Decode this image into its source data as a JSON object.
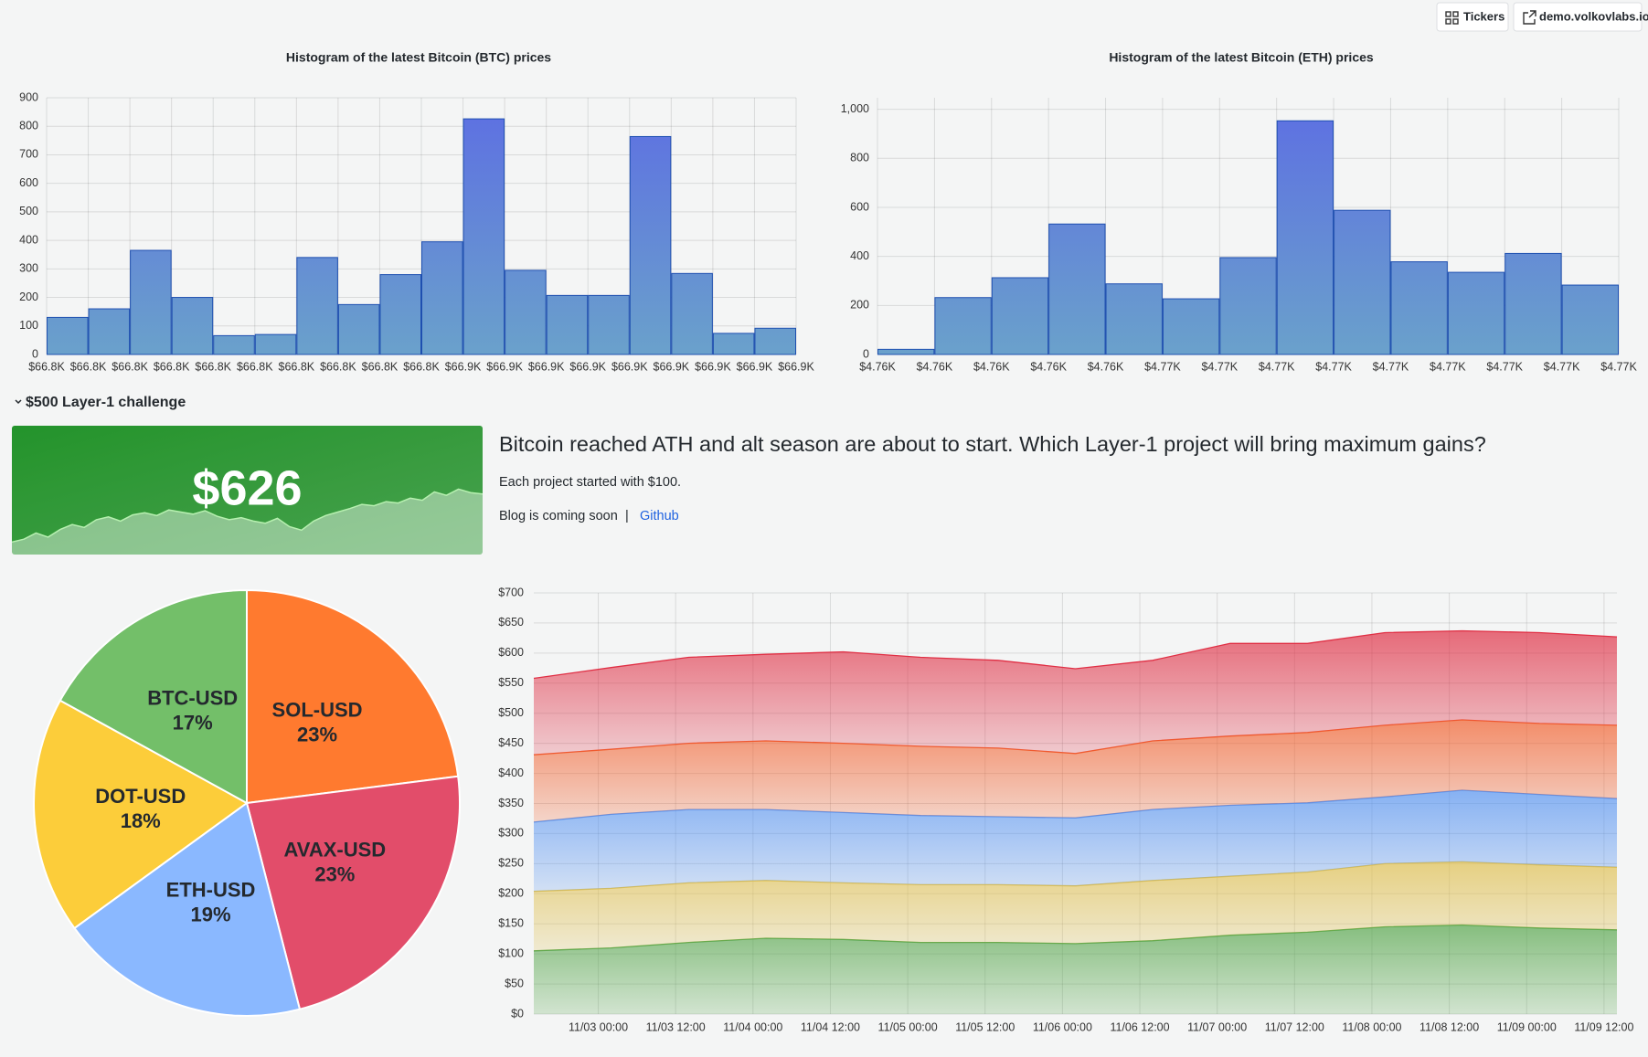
{
  "header": {
    "buttons": [
      "Tickers",
      "demo.volkovlabs.io"
    ]
  },
  "row_title": "$500 Layer-1 challenge",
  "text_panel": {
    "heading": "Bitcoin reached ATH and alt season are about to start. Which Layer-1 project will bring maximum gains?",
    "paragraph": "Each project started with $100.",
    "footer": [
      "Blog is coming soon",
      "|",
      "Github"
    ]
  },
  "chart_data": [
    {
      "type": "histogram",
      "title": "Histogram of the latest Bitcoin (BTC) prices",
      "bins": [
        66772,
        66780,
        66788,
        66796,
        66804,
        66812,
        66820,
        66828,
        66836,
        66844,
        66852,
        66860,
        66868,
        66876,
        66884,
        66892,
        66900,
        66908,
        66916
      ],
      "counts": [
        130,
        160,
        365,
        200,
        66,
        70,
        340,
        175,
        280,
        395,
        826,
        295,
        207,
        207,
        764,
        284,
        74,
        92
      ],
      "xlim": [
        66772,
        66916
      ],
      "xticks": [
        {
          "value": 66772,
          "label": "$66.8K"
        },
        {
          "value": 66780,
          "label": "$66.8K"
        },
        {
          "value": 66788,
          "label": "$66.8K"
        },
        {
          "value": 66796,
          "label": "$66.8K"
        },
        {
          "value": 66804,
          "label": "$66.8K"
        },
        {
          "value": 66812,
          "label": "$66.8K"
        },
        {
          "value": 66820,
          "label": "$66.8K"
        },
        {
          "value": 66828,
          "label": "$66.8K"
        },
        {
          "value": 66836,
          "label": "$66.8K"
        },
        {
          "value": 66844,
          "label": "$66.8K"
        },
        {
          "value": 66852,
          "label": "$66.9K"
        },
        {
          "value": 66860,
          "label": "$66.9K"
        },
        {
          "value": 66868,
          "label": "$66.9K"
        },
        {
          "value": 66876,
          "label": "$66.9K"
        },
        {
          "value": 66884,
          "label": "$66.9K"
        },
        {
          "value": 66892,
          "label": "$66.9K"
        },
        {
          "value": 66900,
          "label": "$66.9K"
        },
        {
          "value": 66908,
          "label": "$66.9K"
        },
        {
          "value": 66916,
          "label": "$66.9K"
        }
      ],
      "ylim": [
        0,
        900
      ],
      "yticks": [
        0,
        100,
        200,
        300,
        400,
        500,
        600,
        700,
        800,
        900
      ],
      "grid": true,
      "gradient": [
        "#5d6ee3",
        "#6aa1cb"
      ],
      "line_color": "#1e4fb0"
    },
    {
      "type": "histogram",
      "title": "Histogram of the latest Bitcoin (ETH) prices",
      "bins": [
        4759.2,
        4760.4,
        4761.6,
        4762.8,
        4764.0,
        4765.2,
        4766.4,
        4767.6,
        4768.8,
        4770.0,
        4771.2,
        4772.4,
        4773.6,
        4774.8
      ],
      "counts": [
        21,
        232,
        313,
        532,
        288,
        227,
        395,
        953,
        588,
        378,
        335,
        412,
        283
      ],
      "xlim": [
        4759.2,
        4774.8
      ],
      "xticks": [
        {
          "value": 4759.2,
          "label": "$4.76K"
        },
        {
          "value": 4760.4,
          "label": "$4.76K"
        },
        {
          "value": 4761.6,
          "label": "$4.76K"
        },
        {
          "value": 4762.8,
          "label": "$4.76K"
        },
        {
          "value": 4764.0,
          "label": "$4.76K"
        },
        {
          "value": 4765.2,
          "label": "$4.77K"
        },
        {
          "value": 4766.4,
          "label": "$4.77K"
        },
        {
          "value": 4767.6,
          "label": "$4.77K"
        },
        {
          "value": 4768.8,
          "label": "$4.77K"
        },
        {
          "value": 4770.0,
          "label": "$4.77K"
        },
        {
          "value": 4771.2,
          "label": "$4.77K"
        },
        {
          "value": 4772.4,
          "label": "$4.77K"
        },
        {
          "value": 4773.6,
          "label": "$4.77K"
        },
        {
          "value": 4774.8,
          "label": "$4.77K"
        }
      ],
      "ylim": [
        0,
        1047
      ],
      "yticks": [
        0,
        200,
        400,
        600,
        800,
        {
          "value": 1000,
          "label": "1,000"
        }
      ],
      "grid": true,
      "gradient": [
        "#5d6ee3",
        "#6aa1cb"
      ],
      "line_color": "#1e4fb0"
    },
    {
      "type": "stat",
      "values": [
        626
      ],
      "value_labels": [
        "$626"
      ],
      "color": "#27a02f",
      "sparkline": {
        "values": [
          558,
          562,
          571,
          565,
          576,
          583,
          579,
          590,
          594,
          588,
          597,
          600,
          596,
          604,
          601,
          598,
          603,
          595,
          590,
          593,
          588,
          585,
          592,
          580,
          575,
          588,
          596,
          601,
          606,
          612,
          610,
          616,
          614,
          621,
          618,
          630,
          625,
          634,
          629,
          627
        ],
        "ylim": [
          540,
          725
        ]
      }
    },
    {
      "type": "pie",
      "categories": [
        "SOL-USD",
        "AVAX-USD",
        "ETH-USD",
        "DOT-USD",
        "BTC-USD"
      ],
      "values": [
        23,
        23,
        19,
        18,
        17
      ],
      "value_labels": [
        "23%",
        "23%",
        "19%",
        "18%",
        "17%"
      ],
      "colors": [
        "#ff7a2f",
        "#e24d6a",
        "#8ab8ff",
        "#fccd3a",
        "#73bf69"
      ]
    },
    {
      "type": "area",
      "stacked": true,
      "x": [
        "11/02 14:00",
        "11/03 02:00",
        "11/03 14:00",
        "11/04 02:00",
        "11/04 14:00",
        "11/05 02:00",
        "11/05 14:00",
        "11/06 02:00",
        "11/06 14:00",
        "11/07 02:00",
        "11/07 14:00",
        "11/08 02:00",
        "11/08 14:00",
        "11/09 02:00",
        "11/09 14:00"
      ],
      "series": [
        {
          "color": "#56a64b",
          "values": [
            105,
            110,
            119,
            126,
            124,
            119,
            119,
            117,
            122,
            131,
            136,
            145,
            148,
            143,
            140
          ]
        },
        {
          "color": "#e0c050",
          "values": [
            99,
            99,
            99,
            96,
            94,
            96,
            96,
            96,
            100,
            98,
            100,
            105,
            105,
            105,
            104
          ]
        },
        {
          "color": "#5794f2",
          "values": [
            115,
            123,
            122,
            118,
            117,
            115,
            113,
            113,
            118,
            118,
            115,
            111,
            119,
            117,
            114
          ]
        },
        {
          "color": "#f2602d",
          "values": [
            112,
            108,
            110,
            114,
            115,
            115,
            114,
            107,
            114,
            115,
            117,
            119,
            117,
            118,
            122
          ]
        },
        {
          "color": "#e02f44",
          "values": [
            127,
            136,
            143,
            144,
            152,
            148,
            146,
            141,
            134,
            154,
            148,
            154,
            148,
            151,
            147
          ]
        }
      ],
      "xlim": [
        "11/02 14:00",
        "11/09 14:00"
      ],
      "xticks": [
        "11/03 00:00",
        "11/03 12:00",
        "11/04 00:00",
        "11/04 12:00",
        "11/05 00:00",
        "11/05 12:00",
        "11/06 00:00",
        "11/06 12:00",
        "11/07 00:00",
        "11/07 12:00",
        "11/08 00:00",
        "11/08 12:00",
        "11/09 00:00",
        "11/09 12:00"
      ],
      "ylim": [
        0,
        700
      ],
      "yticks": [
        {
          "value": 0,
          "label": "$0"
        },
        {
          "value": 50,
          "label": "$50"
        },
        {
          "value": 100,
          "label": "$100"
        },
        {
          "value": 150,
          "label": "$150"
        },
        {
          "value": 200,
          "label": "$200"
        },
        {
          "value": 250,
          "label": "$250"
        },
        {
          "value": 300,
          "label": "$300"
        },
        {
          "value": 350,
          "label": "$350"
        },
        {
          "value": 400,
          "label": "$400"
        },
        {
          "value": 450,
          "label": "$450"
        },
        {
          "value": 500,
          "label": "$500"
        },
        {
          "value": 550,
          "label": "$550"
        },
        {
          "value": 600,
          "label": "$600"
        },
        {
          "value": 650,
          "label": "$650"
        },
        {
          "value": 700,
          "label": "$700"
        }
      ],
      "grid": true
    }
  ]
}
